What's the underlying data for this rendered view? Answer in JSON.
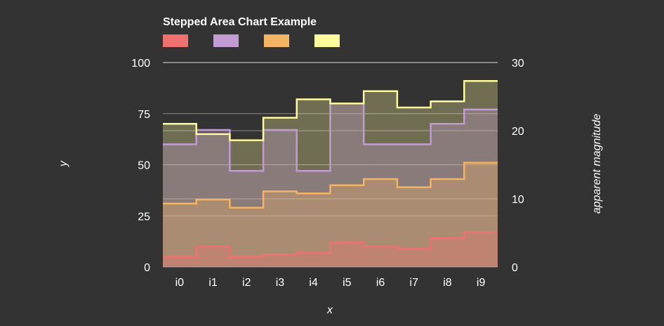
{
  "chart_data": {
    "type": "area",
    "step": true,
    "title": "Stepped Area Chart Example",
    "xlabel": "x",
    "ylabel": "y",
    "y2label": "apparent magnitude",
    "categories": [
      "i0",
      "i1",
      "i2",
      "i3",
      "i4",
      "i5",
      "i6",
      "i7",
      "i8",
      "i9"
    ],
    "ylim": [
      0,
      100
    ],
    "y2lim": [
      0,
      30
    ],
    "yticks": [
      "0",
      "25",
      "50",
      "75",
      "100"
    ],
    "y2ticks": [
      "0",
      "10",
      "20",
      "30"
    ],
    "grid": true,
    "legend_position": "top-left",
    "series": [
      {
        "color": "#f07070",
        "values": [
          5,
          10,
          5,
          6,
          7,
          12,
          10,
          9,
          14,
          17
        ]
      },
      {
        "color": "#c39bd3",
        "values": [
          60,
          67,
          47,
          67,
          47,
          80,
          60,
          60,
          70,
          77
        ]
      },
      {
        "color": "#f5b461",
        "values": [
          31,
          33,
          29,
          37,
          36,
          40,
          43,
          39,
          43,
          51
        ]
      },
      {
        "color": "#fffa9a",
        "values": [
          70,
          65,
          62,
          73,
          82,
          80,
          86,
          78,
          81,
          91
        ]
      }
    ]
  }
}
